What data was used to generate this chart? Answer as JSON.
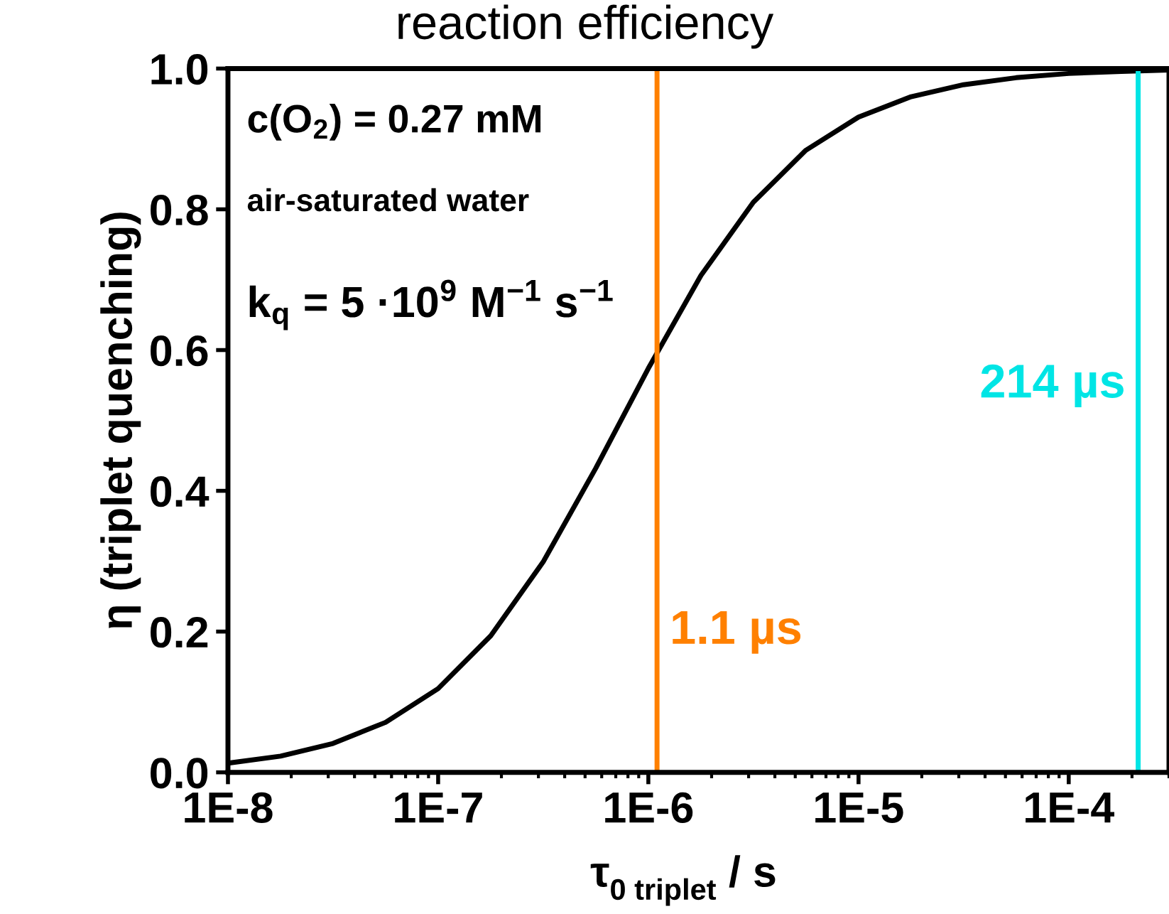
{
  "chart_data": {
    "type": "line",
    "title": "reaction efficiency",
    "xlabel": "τ$_{0 triplet}$ / s",
    "ylabel": "η (triplet quenching)",
    "log": "x",
    "xlim": [
      1e-08,
      0.0003
    ],
    "xticks": [
      {
        "value": 1e-08,
        "label": "1E-8"
      },
      {
        "value": 1e-07,
        "label": "1E-7"
      },
      {
        "value": 1e-06,
        "label": "1E-6"
      },
      {
        "value": 1e-05,
        "label": "1E-5"
      },
      {
        "value": 0.0001,
        "label": "1E-4"
      }
    ],
    "ylim": [
      0,
      1
    ],
    "yticks": [
      {
        "value": 0,
        "label": "0.0"
      },
      {
        "value": 0.2,
        "label": "0.2"
      },
      {
        "value": 0.4,
        "label": "0.4"
      },
      {
        "value": 0.6,
        "label": "0.6"
      },
      {
        "value": 0.8,
        "label": "0.8"
      },
      {
        "value": 1,
        "label": "1.0"
      }
    ],
    "x": [
      1e-08,
      1.78e-08,
      3.16e-08,
      5.62e-08,
      1e-07,
      1.78e-07,
      3.16e-07,
      5.62e-07,
      1e-06,
      1.78e-06,
      3.16e-06,
      5.62e-06,
      1e-05,
      1.78e-05,
      3.16e-05,
      5.62e-05,
      0.0001,
      0.000178,
      0.0003
    ],
    "series": [
      {
        "color": "#000000",
        "values": [
          0.013,
          0.023,
          0.041,
          0.071,
          0.119,
          0.194,
          0.299,
          0.432,
          0.574,
          0.706,
          0.81,
          0.884,
          0.931,
          0.96,
          0.977,
          0.987,
          0.993,
          0.996,
          0.998
        ]
      }
    ],
    "ref_lines": [
      {
        "axis": "x",
        "value": 1.1e-06,
        "label": "1.1 µs",
        "color": "#ff8000"
      },
      {
        "axis": "x",
        "value": 0.000214,
        "label": "214 µs",
        "color": "#00e5e5"
      }
    ],
    "annotations": [
      "c(O$_{2}$) = 0.27 mM",
      "air-saturated water",
      "k$_{q}$ = 5 ·10$^{9}$ M$^{−1}$ s$^{−1}$"
    ],
    "grid": false,
    "legend": false,
    "marker": "none",
    "line_style": "solid"
  }
}
